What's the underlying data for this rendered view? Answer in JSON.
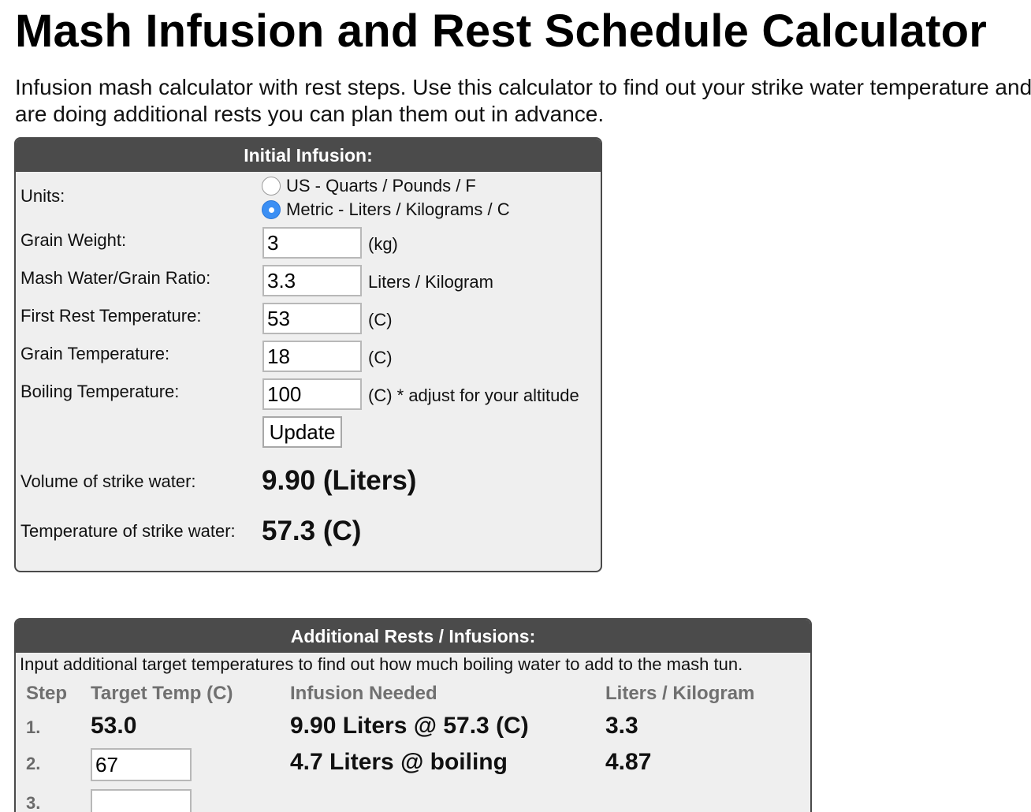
{
  "page": {
    "title": "Mash Infusion and Rest Schedule Calculator",
    "intro": "Infusion mash calculator with rest steps. Use this calculator to find out your strike water temperature and if you are doing additional rests you can plan them out in advance."
  },
  "initial": {
    "header": "Initial Infusion:",
    "units_label": "Units:",
    "unit_options": [
      {
        "label": "US - Quarts / Pounds / F",
        "selected": false
      },
      {
        "label": "Metric - Liters / Kilograms / C",
        "selected": true
      }
    ],
    "fields": [
      {
        "label": "Grain Weight:",
        "value": "3",
        "unit": "(kg)"
      },
      {
        "label": "Mash Water/Grain Ratio:",
        "value": "3.3",
        "unit": "Liters / Kilogram"
      },
      {
        "label": "First Rest Temperature:",
        "value": "53",
        "unit": "(C)"
      },
      {
        "label": "Grain Temperature:",
        "value": "18",
        "unit": "(C)"
      },
      {
        "label": "Boiling Temperature:",
        "value": "100",
        "unit": "(C) * adjust for your altitude"
      }
    ],
    "update_label": "Update",
    "volume_label": "Volume of strike water:",
    "volume_value": "9.90 (Liters)",
    "temp_label": "Temperature of strike water:",
    "temp_value": "57.3 (C)"
  },
  "additional": {
    "header": "Additional Rests / Infusions:",
    "description": "Input additional target temperatures to find out how much boiling water to add to the mash tun.",
    "columns": [
      "Step",
      "Target Temp (C)",
      "Infusion Needed",
      "Liters / Kilogram"
    ],
    "rows": [
      {
        "step": "1.",
        "target": "53.0",
        "infusion": "9.90 Liters @ 57.3 (C)",
        "ratio": "3.3"
      },
      {
        "step": "2.",
        "target": "67",
        "infusion": "4.7 Liters @ boiling",
        "ratio": "4.87"
      },
      {
        "step": "3.",
        "target": "",
        "infusion": "",
        "ratio": ""
      }
    ]
  }
}
